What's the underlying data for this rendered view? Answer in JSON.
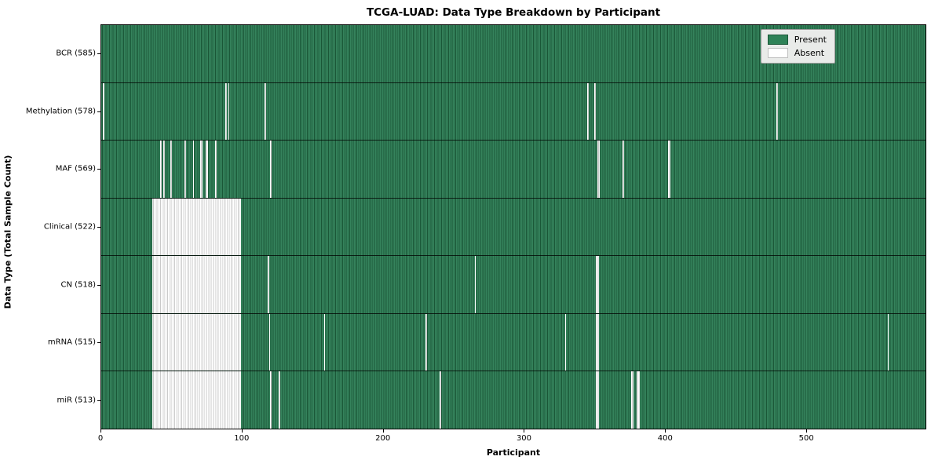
{
  "colors": {
    "present": "#2e8257",
    "present_dark": "#1a5737",
    "absent": "#ffffff",
    "absent_stripe": "#c9c9c9",
    "legend_bg": "#e9ebe9",
    "spine": "#000000"
  },
  "chart_data": {
    "type": "heatmap",
    "title": "TCGA-LUAD: Data Type Breakdown by Participant",
    "xlabel": "Participant",
    "ylabel": "Data Type (Total Sample Count)",
    "x_ticks": [
      0,
      100,
      200,
      300,
      400,
      500
    ],
    "n_participants": 585,
    "grid": false,
    "legend_position": "upper right",
    "legend": [
      {
        "label": "Present",
        "color": "#2e8257"
      },
      {
        "label": "Absent",
        "color": "#ffffff"
      }
    ],
    "rows": [
      {
        "data_type": "BCR",
        "label": "BCR (585)",
        "present_count": 585,
        "absent_ranges": []
      },
      {
        "data_type": "Methylation",
        "label": "Methylation (578)",
        "present_count": 578,
        "absent_ranges": [
          [
            1,
            1
          ],
          [
            88,
            1
          ],
          [
            90,
            1
          ],
          [
            116,
            1
          ],
          [
            345,
            1
          ],
          [
            350,
            1
          ],
          [
            479,
            1
          ]
        ]
      },
      {
        "data_type": "MAF",
        "label": "MAF (569)",
        "present_count": 569,
        "absent_ranges": [
          [
            42,
            1
          ],
          [
            44,
            1
          ],
          [
            49,
            1
          ],
          [
            59,
            1
          ],
          [
            65,
            1
          ],
          [
            70,
            2
          ],
          [
            74,
            2
          ],
          [
            81,
            1
          ],
          [
            120,
            1
          ],
          [
            352,
            2
          ],
          [
            370,
            1
          ],
          [
            402,
            2
          ]
        ]
      },
      {
        "data_type": "Clinical",
        "label": "Clinical (522)",
        "present_count": 522,
        "absent_ranges": [
          [
            36,
            63
          ]
        ]
      },
      {
        "data_type": "CN",
        "label": "CN (518)",
        "present_count": 518,
        "absent_ranges": [
          [
            36,
            63
          ],
          [
            118,
            1
          ],
          [
            265,
            1
          ],
          [
            351,
            2
          ]
        ]
      },
      {
        "data_type": "mRNA",
        "label": "mRNA (515)",
        "present_count": 515,
        "absent_ranges": [
          [
            36,
            63
          ],
          [
            119,
            1
          ],
          [
            158,
            1
          ],
          [
            230,
            1
          ],
          [
            329,
            1
          ],
          [
            351,
            2
          ],
          [
            558,
            1
          ]
        ]
      },
      {
        "data_type": "miR",
        "label": "miR (513)",
        "present_count": 513,
        "absent_ranges": [
          [
            36,
            63
          ],
          [
            120,
            1
          ],
          [
            126,
            1
          ],
          [
            240,
            1
          ],
          [
            351,
            2
          ],
          [
            376,
            2
          ],
          [
            380,
            2
          ]
        ]
      }
    ]
  }
}
